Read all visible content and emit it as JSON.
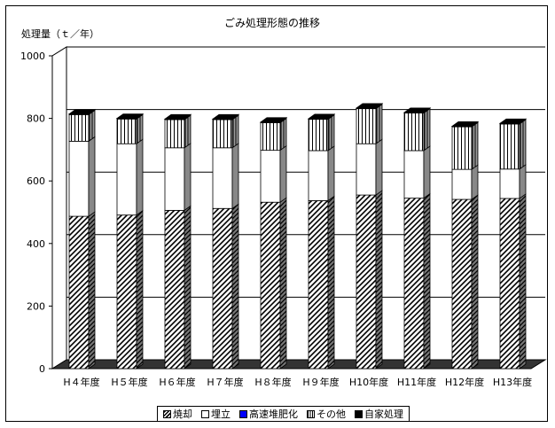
{
  "chart_data": {
    "type": "bar",
    "stacked": true,
    "title": "ごみ処理形態の推移",
    "ylabel": "処理量（ｔ／年）",
    "xlabel": "",
    "ylim": [
      0,
      1000
    ],
    "yticks": [
      0,
      200,
      400,
      600,
      800,
      1000
    ],
    "categories": [
      "H４年度",
      "H５年度",
      "H６年度",
      "H７年度",
      "H８年度",
      "H９年度",
      "H10年度",
      "H11年度",
      "H12年度",
      "H13年度"
    ],
    "series": [
      {
        "name": "焼却",
        "values": [
          487,
          491,
          506,
          512,
          532,
          537,
          555,
          545,
          541,
          544
        ],
        "pattern": "diagonal-hatch",
        "color": "#000000"
      },
      {
        "name": "埋立",
        "values": [
          240,
          228,
          200,
          194,
          166,
          160,
          164,
          152,
          96,
          94
        ],
        "pattern": "solid",
        "color": "#ffffff"
      },
      {
        "name": "高速堆肥化",
        "values": [
          0,
          0,
          0,
          0,
          0,
          0,
          0,
          0,
          0,
          0
        ],
        "pattern": "solid",
        "color": "#0000ff"
      },
      {
        "name": "その他",
        "values": [
          85,
          79,
          90,
          90,
          88,
          100,
          112,
          120,
          136,
          144
        ],
        "pattern": "vertical-lines",
        "color": "#000000"
      },
      {
        "name": "自家処理",
        "values": [
          2,
          2,
          2,
          2,
          2,
          2,
          2,
          2,
          2,
          2
        ],
        "pattern": "solid",
        "color": "#000000"
      }
    ],
    "grid": true,
    "legend_position": "bottom",
    "three_d": true
  }
}
